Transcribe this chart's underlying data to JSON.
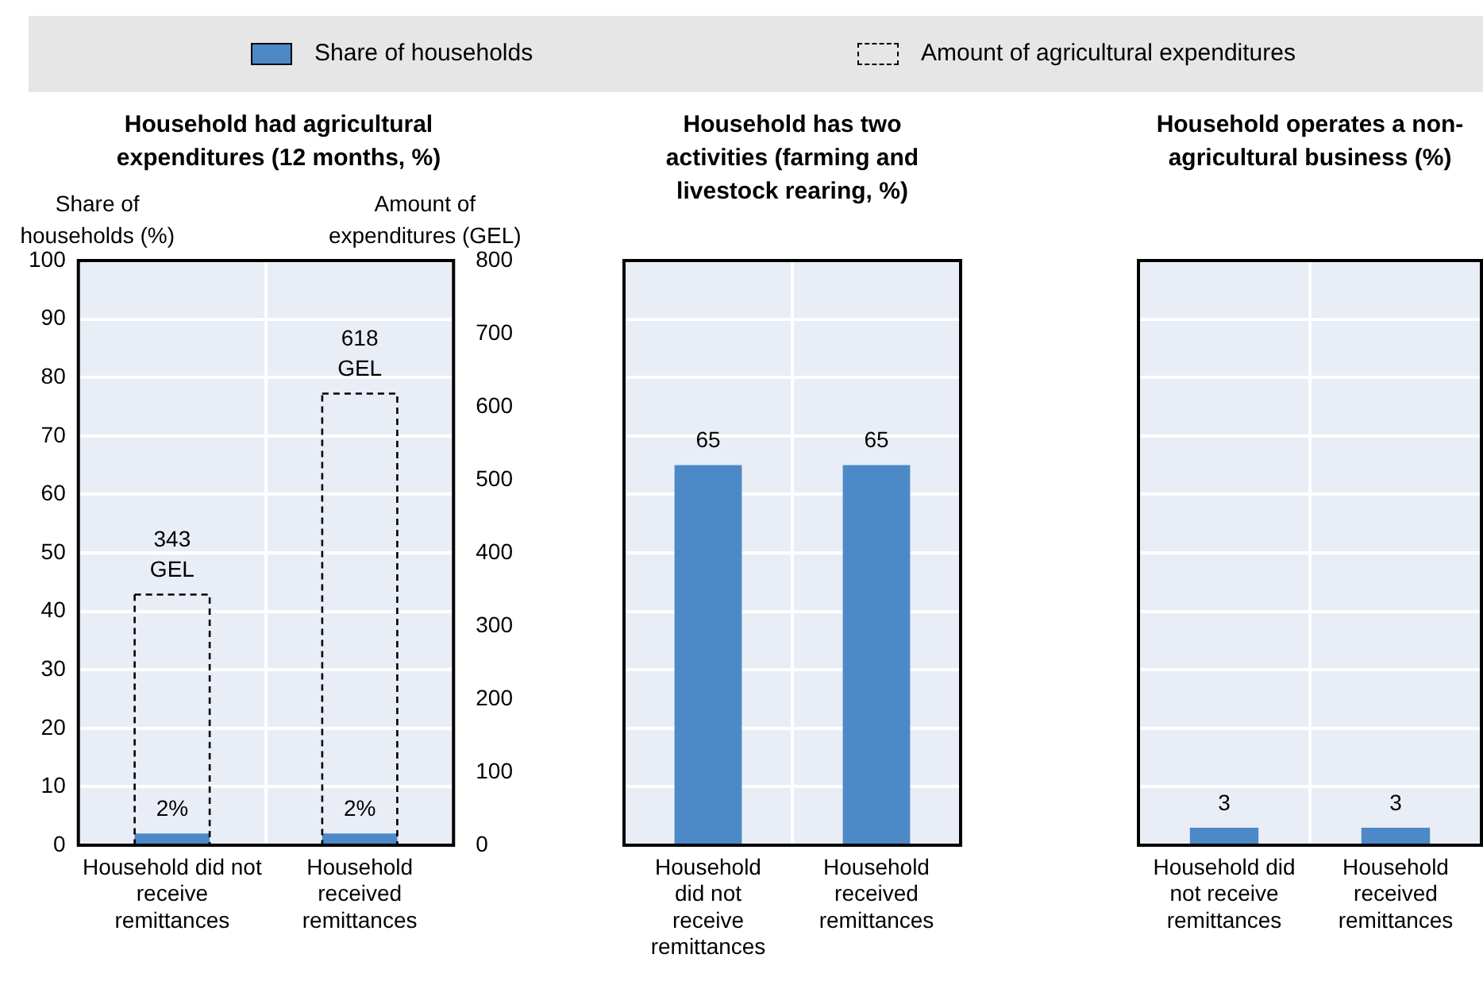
{
  "chart_data": [
    {
      "type": "bar",
      "title": "Household had agricultural expenditures (12 months, %)",
      "ylabel": "Share of households (%)",
      "y2label": "Amount of expenditures (GEL)",
      "categories": [
        "Household did not receive remittances",
        "Household received remittances"
      ],
      "series": [
        {
          "name": "Share of households",
          "color": "#4e89c7",
          "values": [
            2,
            2
          ],
          "value_labels": [
            "2%",
            "2%"
          ]
        },
        {
          "name": "Amount of agricultural expenditures",
          "color": "#000000",
          "line_style": "dashed",
          "axis": "y2",
          "values": [
            343,
            618
          ],
          "value_labels": [
            "343 GEL",
            "618 GEL"
          ]
        }
      ],
      "ylim": [
        0,
        100
      ],
      "yticks": [
        0,
        10,
        20,
        30,
        40,
        50,
        60,
        70,
        80,
        90,
        100
      ],
      "y2lim": [
        0,
        800
      ],
      "y2ticks": [
        0,
        100,
        200,
        300,
        400,
        500,
        600,
        700,
        800
      ],
      "grid": true,
      "legend": "top"
    },
    {
      "type": "bar",
      "title": "Household has two activities (farming and livestock rearing, %)",
      "categories": [
        "Household did not receive remittances",
        "Household received remittances"
      ],
      "values": [
        65,
        65
      ],
      "color": "#4e89c7",
      "data_labels": true,
      "ylim": [
        0,
        100
      ],
      "yticks": [
        0,
        10,
        20,
        30,
        40,
        50,
        60,
        70,
        80,
        90,
        100
      ],
      "tick_labels": "x",
      "grid": true
    },
    {
      "type": "bar",
      "title": "Household operates a non-agricultural business (%)",
      "categories": [
        "Household did not receive remittances",
        "Household received remittances"
      ],
      "values": [
        3,
        3
      ],
      "color": "#4e89c7",
      "data_labels": true,
      "ylim": [
        0,
        100
      ],
      "yticks": [
        0,
        10,
        20,
        30,
        40,
        50,
        60,
        70,
        80,
        90,
        100
      ],
      "tick_labels": "x",
      "grid": true
    }
  ]
}
